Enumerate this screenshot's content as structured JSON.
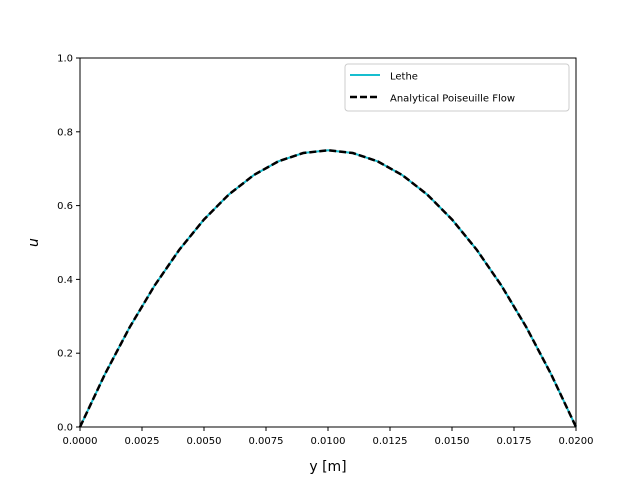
{
  "chart_data": {
    "type": "line",
    "xlabel": "y [m]",
    "ylabel": "u",
    "xlim": [
      0.0,
      0.02
    ],
    "ylim": [
      0.0,
      1.0
    ],
    "xticks": [
      "0.0000",
      "0.0025",
      "0.0050",
      "0.0075",
      "0.0100",
      "0.0125",
      "0.0150",
      "0.0175",
      "0.0200"
    ],
    "yticks": [
      "0.0",
      "0.2",
      "0.4",
      "0.6",
      "0.8",
      "1.0"
    ],
    "grid": false,
    "legend_position": "top-right",
    "series": [
      {
        "name": "Lethe",
        "color": "#17becf",
        "style": "solid",
        "x": [
          0.0,
          0.001,
          0.002,
          0.003,
          0.004,
          0.005,
          0.006,
          0.007,
          0.008,
          0.009,
          0.01,
          0.011,
          0.012,
          0.013,
          0.014,
          0.015,
          0.016,
          0.017,
          0.018,
          0.019,
          0.02
        ],
        "y": [
          0.0,
          0.1425,
          0.27,
          0.3825,
          0.48,
          0.5625,
          0.63,
          0.6825,
          0.72,
          0.7425,
          0.75,
          0.7425,
          0.72,
          0.6825,
          0.63,
          0.5625,
          0.48,
          0.3825,
          0.27,
          0.1425,
          0.0
        ]
      },
      {
        "name": "Analytical Poiseuille Flow",
        "color": "#000000",
        "style": "dashed",
        "x": [
          0.0,
          0.001,
          0.002,
          0.003,
          0.004,
          0.005,
          0.006,
          0.007,
          0.008,
          0.009,
          0.01,
          0.011,
          0.012,
          0.013,
          0.014,
          0.015,
          0.016,
          0.017,
          0.018,
          0.019,
          0.02
        ],
        "y": [
          0.0,
          0.1425,
          0.27,
          0.3825,
          0.48,
          0.5625,
          0.63,
          0.6825,
          0.72,
          0.7425,
          0.75,
          0.7425,
          0.72,
          0.6825,
          0.63,
          0.5625,
          0.48,
          0.3825,
          0.27,
          0.1425,
          0.0
        ]
      }
    ]
  }
}
